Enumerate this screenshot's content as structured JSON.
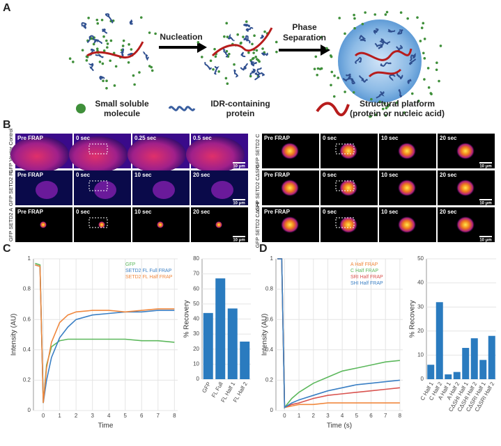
{
  "panel_labels": [
    "A",
    "B",
    "C",
    "D"
  ],
  "diagram": {
    "step_1": "Nucleation",
    "step_2": [
      "Phase",
      "Separation"
    ],
    "legend": [
      [
        "Small soluble",
        "molecule"
      ],
      [
        "IDR-containing",
        "protein"
      ],
      [
        "Structural platform",
        "(protein or nucleic acid)"
      ]
    ]
  },
  "microscopy": {
    "scale_bar": "10 μm",
    "left": [
      {
        "label": "GFP Vector Control",
        "frames": [
          "Pre FRAP",
          "0 sec",
          "0.25 sec",
          "0.5 sec"
        ]
      },
      {
        "label": "GFP SETD2 FL",
        "frames": [
          "Pre FRAP",
          "0 sec",
          "10 sec",
          "20 sec"
        ]
      },
      {
        "label": "GFP SETD2 A",
        "frames": [
          "Pre FRAP",
          "0 sec",
          "10 sec",
          "20 sec"
        ]
      }
    ],
    "right": [
      {
        "label": "GFP SETD2 C",
        "frames": [
          "Pre FRAP",
          "0 sec",
          "10 sec",
          "20 sec"
        ]
      },
      {
        "label": "GFP SETD2 CΔSRI",
        "frames": [
          "Pre FRAP",
          "0 sec",
          "10 sec",
          "20 sec"
        ]
      },
      {
        "label": "GFP SETD2 CΔSHI",
        "frames": [
          "Pre FRAP",
          "0 sec",
          "10 sec",
          "20 sec"
        ]
      }
    ]
  },
  "chart_data": [
    {
      "type": "line",
      "x_label": "Time",
      "y_label": "Intensity (AU)",
      "x": [
        -0.5,
        -0.2,
        0,
        0.2,
        0.5,
        1,
        1.5,
        2,
        3,
        4,
        5,
        6,
        7,
        8
      ],
      "xlim": [
        -0.6,
        8.2
      ],
      "xticks": [
        0,
        1,
        2,
        3,
        4,
        5,
        6,
        7,
        8
      ],
      "ylim": [
        0,
        1
      ],
      "yticks": [
        0,
        0.2,
        0.4,
        0.6,
        0.8,
        1
      ],
      "grid": true,
      "series": [
        {
          "name": "GFP",
          "color": "#5cb85c",
          "values": [
            0.97,
            0.96,
            0.05,
            0.3,
            0.42,
            0.46,
            0.47,
            0.47,
            0.47,
            0.47,
            0.47,
            0.46,
            0.46,
            0.45
          ]
        },
        {
          "name": "SETD2 FL Full FRAP",
          "color": "#3a7fc4",
          "values": [
            0.96,
            0.95,
            0.05,
            0.2,
            0.35,
            0.48,
            0.55,
            0.6,
            0.63,
            0.64,
            0.65,
            0.65,
            0.66,
            0.66
          ]
        },
        {
          "name": "SETD2 FL Half FRAP",
          "color": "#f0883e",
          "values": [
            0.96,
            0.95,
            0.05,
            0.28,
            0.45,
            0.58,
            0.63,
            0.65,
            0.66,
            0.66,
            0.65,
            0.66,
            0.67,
            0.67
          ]
        }
      ]
    },
    {
      "type": "bar",
      "y_label": "% Recovery",
      "categories": [
        "GFP",
        "FL Full",
        "FL Half 1",
        "FL Half 2"
      ],
      "values": [
        44,
        67,
        47,
        25
      ],
      "color": "#2a7bbf",
      "ylim": [
        0,
        80
      ],
      "yticks": [
        0,
        10,
        20,
        30,
        40,
        50,
        60,
        70,
        80
      ],
      "grid": true
    },
    {
      "type": "line",
      "x_label": "Time (s)",
      "y_label": "Intensity (AU)",
      "x": [
        -0.5,
        -0.2,
        0,
        0.5,
        1,
        2,
        3,
        4,
        5,
        6,
        7,
        8
      ],
      "xlim": [
        -0.6,
        8.2
      ],
      "xticks": [
        0,
        1,
        2,
        3,
        4,
        5,
        6,
        7,
        8
      ],
      "ylim": [
        0,
        1
      ],
      "yticks": [
        0,
        0.2,
        0.4,
        0.6,
        0.8,
        1
      ],
      "grid": true,
      "series": [
        {
          "name": "A Half FRAP",
          "color": "#f0883e",
          "values": [
            1,
            1,
            0.02,
            0.03,
            0.04,
            0.04,
            0.05,
            0.05,
            0.05,
            0.05,
            0.05,
            0.05
          ]
        },
        {
          "name": "C Half FRAP",
          "color": "#5cb85c",
          "values": [
            1,
            1,
            0.02,
            0.08,
            0.12,
            0.18,
            0.22,
            0.26,
            0.28,
            0.3,
            0.32,
            0.33
          ]
        },
        {
          "name": "SRI Half FRAP",
          "color": "#d9534f",
          "values": [
            1,
            1,
            0.02,
            0.04,
            0.05,
            0.08,
            0.1,
            0.11,
            0.12,
            0.13,
            0.14,
            0.15
          ]
        },
        {
          "name": "SHI Half FRAP",
          "color": "#3a7fc4",
          "values": [
            1,
            1,
            0.02,
            0.05,
            0.07,
            0.1,
            0.13,
            0.15,
            0.17,
            0.18,
            0.19,
            0.2
          ]
        }
      ]
    },
    {
      "type": "bar",
      "y_label": "% Recovery",
      "categories": [
        "C Half 1",
        "C Half 2",
        "A Half 1",
        "A Half 2",
        "CΔSHI Half 1",
        "CΔSHI Half 2",
        "CΔSRI Half 1",
        "CΔSRI Half 2"
      ],
      "values": [
        6,
        32,
        2,
        3,
        13,
        17,
        8,
        18
      ],
      "color": "#2a7bbf",
      "ylim": [
        0,
        50
      ],
      "yticks": [
        0,
        10,
        20,
        30,
        40,
        50
      ],
      "grid": true
    }
  ]
}
